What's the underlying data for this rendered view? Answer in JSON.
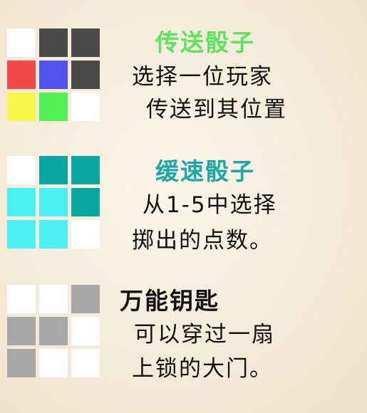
{
  "cards": [
    {
      "title": "传送骰子",
      "title_color": "#5ee35e",
      "lines": [
        "选择一位玩家",
        "传送到其位置"
      ],
      "grid": [
        "#ffffff",
        "#4a4a4a",
        "#4a4a4a",
        "#f24a4a",
        "#5252f0",
        "#4a4a4a",
        "#f7f74a",
        "#52f252",
        "#ffffff"
      ]
    },
    {
      "title": "缓速骰子",
      "title_color": "#1aa8a8",
      "lines": [
        "从1-5中选择",
        "掷出的点数。"
      ],
      "grid": [
        "#ffffff",
        "#0aa6a0",
        "#0aa6a0",
        "#4af0f2",
        "#4af0f2",
        "#0aa6a0",
        "#4af0f2",
        "#4af0f2",
        "#ffffff"
      ]
    },
    {
      "title": "万能钥匙",
      "title_color": "#111111",
      "lines": [
        "可以穿过一扇",
        "上锁的大门。"
      ],
      "grid": [
        "#ffffff",
        "#ffffff",
        "#a8a8a8",
        "#a8a8a8",
        "#a8a8a8",
        "#ffffff",
        "#a8a8a8",
        "#ffffff",
        "#ffffff"
      ]
    }
  ]
}
